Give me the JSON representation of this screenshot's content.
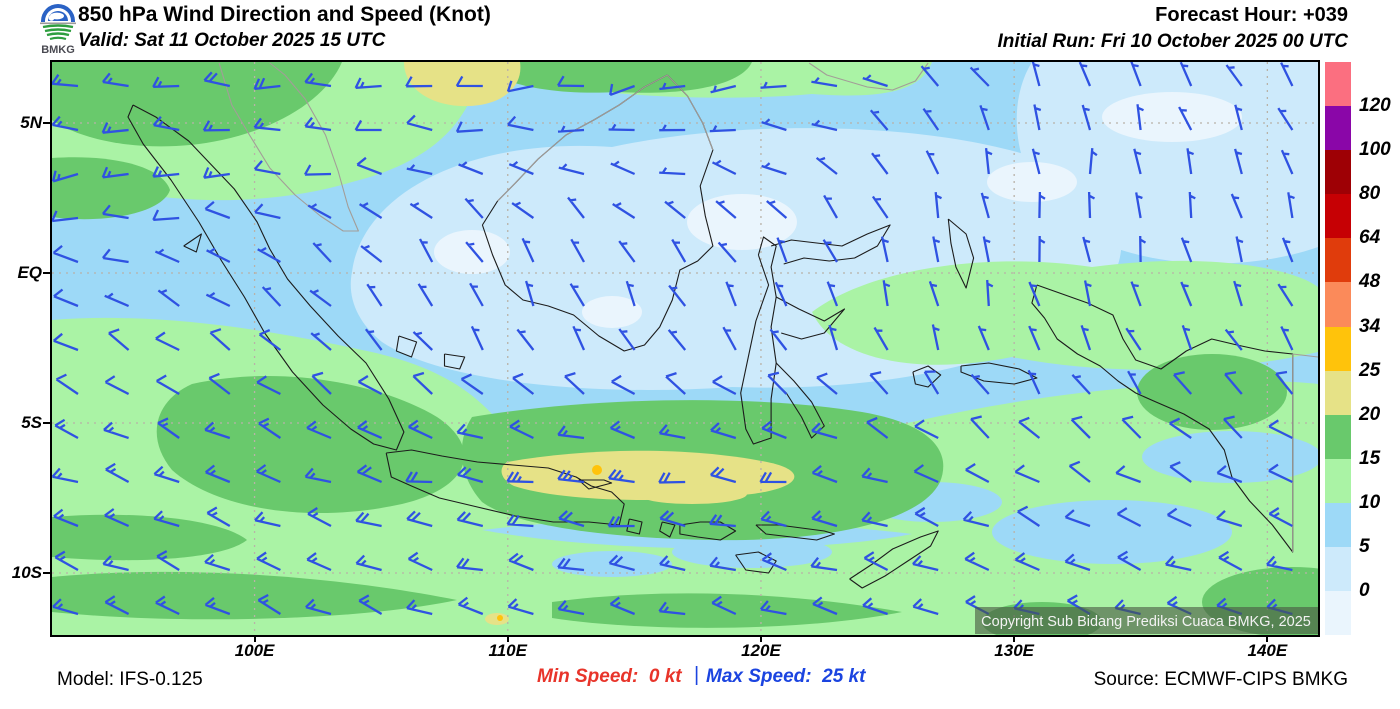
{
  "header": {
    "logo_text": "BMKG",
    "title": "850 hPa Wind Direction and Speed (Knot)",
    "valid": "Valid: Sat 11 October 2025 15 UTC",
    "forecast_hour": "Forecast Hour: +039",
    "initial_run": "Initial Run: Fri 10 October 2025 00 UTC"
  },
  "footer": {
    "model": "Model: IFS-0.125",
    "min_speed": "Min Speed:  0 kt",
    "separator": "|",
    "max_speed": "Max Speed:  25 kt",
    "source": "Source: ECMWF-CIPS BMKG"
  },
  "map": {
    "copyright": "Copyright Sub Bidang Prediksi Cuaca BMKG, 2025",
    "lon_range": [
      92,
      142
    ],
    "lat_range": [
      -12,
      7
    ],
    "x_ticks": [
      {
        "lon": 100,
        "label": "100E"
      },
      {
        "lon": 110,
        "label": "110E"
      },
      {
        "lon": 120,
        "label": "120E"
      },
      {
        "lon": 130,
        "label": "130E"
      },
      {
        "lon": 140,
        "label": "140E"
      }
    ],
    "y_ticks": [
      {
        "lat": 5,
        "label": "5N"
      },
      {
        "lat": 0,
        "label": "EQ"
      },
      {
        "lat": -5,
        "label": "5S"
      },
      {
        "lat": -10,
        "label": "10S"
      }
    ]
  },
  "colorbar": {
    "colors": [
      "#fb6f80",
      "#8a06a8",
      "#9e0005",
      "#c60004",
      "#e03c0c",
      "#fb8a5a",
      "#ffc30b",
      "#e6e287",
      "#69c96c",
      "#aaf3a5",
      "#9dd9f7",
      "#cdeafb",
      "#eaf5fd"
    ],
    "boundary_labels": [
      "120",
      "100",
      "80",
      "64",
      "48",
      "34",
      "25",
      "20",
      "15",
      "10",
      "5",
      "0"
    ]
  },
  "chart_data": {
    "type": "heatmap",
    "title": "850 hPa Wind Direction and Speed (Knot)",
    "units": "knot",
    "level": "850 hPa",
    "valid_time": "Sat 11 October 2025 15 UTC",
    "initial_run": "Fri 10 October 2025 00 UTC",
    "forecast_hour": "+039",
    "min_speed_kt": 0,
    "max_speed_kt": 25,
    "speed_scale_boundaries_kt": [
      0,
      5,
      10,
      15,
      20,
      25,
      34,
      48,
      64,
      80,
      100,
      120
    ],
    "wind_field": {
      "lats": [
        7,
        5,
        3,
        1,
        -1,
        -3,
        -5,
        -7,
        -9,
        -11
      ],
      "lons": [
        92,
        97,
        102,
        107,
        112,
        117,
        122,
        127,
        132,
        137,
        142
      ],
      "speed_kt": [
        [
          16,
          18,
          20,
          14,
          10,
          8,
          5,
          4,
          4,
          5,
          6
        ],
        [
          14,
          16,
          15,
          10,
          8,
          6,
          4,
          3,
          3,
          4,
          5
        ],
        [
          12,
          14,
          10,
          7,
          5,
          5,
          4,
          3,
          3,
          4,
          5
        ],
        [
          10,
          8,
          6,
          4,
          3,
          3,
          4,
          4,
          4,
          5,
          6
        ],
        [
          8,
          6,
          5,
          4,
          3,
          4,
          5,
          5,
          6,
          6,
          6
        ],
        [
          10,
          10,
          8,
          6,
          6,
          8,
          8,
          7,
          6,
          7,
          8
        ],
        [
          14,
          14,
          13,
          12,
          14,
          15,
          12,
          9,
          7,
          8,
          10
        ],
        [
          15,
          14,
          16,
          20,
          24,
          22,
          17,
          12,
          10,
          10,
          12
        ],
        [
          16,
          15,
          16,
          18,
          20,
          18,
          16,
          14,
          12,
          12,
          14
        ],
        [
          15,
          16,
          15,
          16,
          17,
          16,
          15,
          14,
          13,
          14,
          15
        ]
      ],
      "direction_from_deg": [
        [
          95,
          95,
          90,
          85,
          80,
          70,
          80,
          120,
          160,
          150,
          140
        ],
        [
          95,
          95,
          95,
          95,
          90,
          85,
          100,
          150,
          170,
          160,
          150
        ],
        [
          75,
          80,
          95,
          110,
          115,
          105,
          120,
          160,
          180,
          170,
          160
        ],
        [
          95,
          105,
          125,
          140,
          150,
          140,
          150,
          170,
          180,
          170,
          160
        ],
        [
          110,
          120,
          130,
          150,
          160,
          150,
          160,
          170,
          165,
          160,
          155
        ],
        [
          120,
          125,
          130,
          140,
          150,
          140,
          150,
          160,
          155,
          150,
          145
        ],
        [
          115,
          118,
          120,
          115,
          110,
          108,
          112,
          130,
          140,
          135,
          128
        ],
        [
          110,
          112,
          110,
          100,
          95,
          95,
          100,
          112,
          120,
          118,
          112
        ],
        [
          110,
          112,
          112,
          105,
          100,
          100,
          105,
          110,
          115,
          112,
          108
        ],
        [
          112,
          115,
          115,
          110,
          105,
          105,
          108,
          110,
          112,
          110,
          108
        ]
      ]
    }
  }
}
